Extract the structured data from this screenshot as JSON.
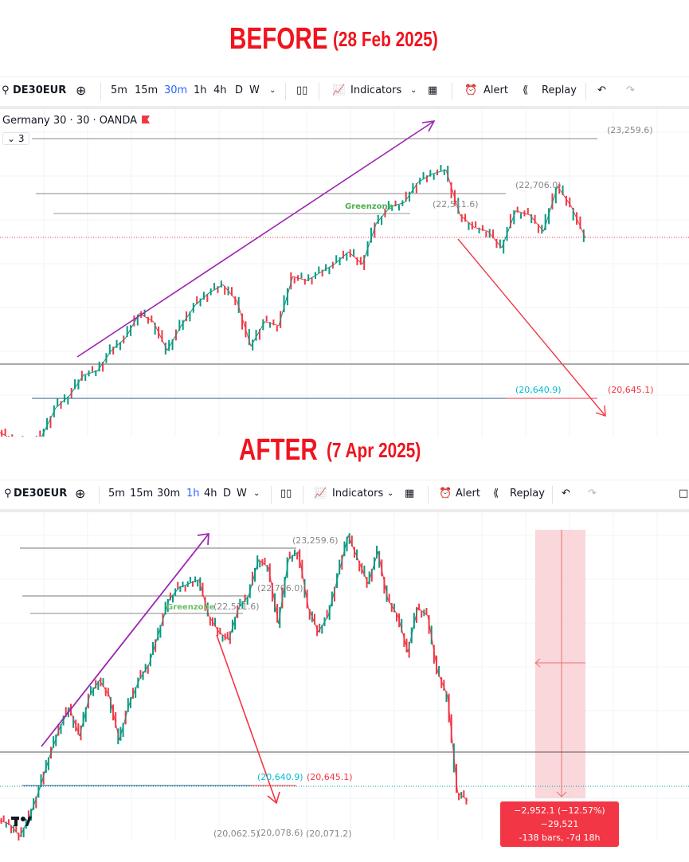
{
  "before": {
    "heading": "BEFORE",
    "date": "(28 Feb 2025)",
    "toolbar": {
      "symbol": "DE30EUR",
      "intervals": [
        "5m",
        "15m",
        "30m",
        "1h",
        "4h",
        "D",
        "W"
      ],
      "active_interval": "30m",
      "indicators": "Indicators",
      "alert": "Alert",
      "replay": "Replay"
    },
    "legend": "Germany 30 · 30 · OANDA",
    "collapse_count": "⌄ 3",
    "labels": {
      "level_top": "(23,259.6)",
      "level_22706": "(22,706.0)",
      "level_22511": "(22,511.6)",
      "greenzone": "Greenzone",
      "level_20640": "(20,640.9)",
      "level_20645": "(20,645.1)"
    }
  },
  "after": {
    "heading": "AFTER",
    "date": "(7 Apr 2025)",
    "toolbar": {
      "symbol": "DE30EUR",
      "intervals": [
        "5m",
        "15m",
        "30m",
        "1h",
        "4h",
        "D",
        "W"
      ],
      "active_interval": "1h",
      "indicators": "Indicators",
      "alert": "Alert",
      "replay": "Replay"
    },
    "labels": {
      "level_top": "(23,259.6)",
      "level_22706": "(22,706.0)",
      "level_22511": "(22,511.6)",
      "greenzone": "Greenzone",
      "level_20640": "(20,640.9)",
      "level_20645": "(20,645.1)",
      "low_1": "(20,062.5)",
      "low_2": "(20,078.6)",
      "low_3": "(20,071.2)"
    },
    "measure": {
      "line1": "−2,952.1 (−12.57%) −29,521",
      "line2": "-138 bars, -7d 18h"
    }
  },
  "colors": {
    "up": "#089981",
    "down": "#f23645",
    "accent": "#2962ff",
    "purple": "#9c27b0",
    "heading": "#f0141e",
    "greenzone": "#4caf50",
    "cyan": "#00bcd4"
  },
  "chart_data": [
    {
      "type": "line",
      "title": "Germany 30 · 30 · OANDA",
      "ylim": [
        20320,
        23532
      ],
      "grid": true,
      "levels": [
        23259.6,
        22706.0,
        22511.6,
        20640.9,
        20645.1
      ],
      "annotations": [
        "Greenzone"
      ],
      "values": [
        20361,
        20281,
        20257,
        20321,
        20602,
        20722,
        20923,
        20963,
        21164,
        21284,
        21525,
        21445,
        21164,
        21405,
        21605,
        21726,
        21806,
        21646,
        21204,
        21445,
        21405,
        21887,
        21847,
        21927,
        22007,
        22128,
        22007,
        22408,
        22569,
        22609,
        22810,
        22890,
        22930,
        22489,
        22369,
        22329,
        22168,
        22529,
        22489,
        22329,
        22770,
        22569,
        22264
      ]
    },
    {
      "type": "line",
      "ylim": [
        20089,
        23680
      ],
      "grid": true,
      "levels": [
        23259.6,
        22706.0,
        22511.6,
        20640.9,
        20645.1
      ],
      "annotations": [
        "Greenzone",
        "(20,062.5)",
        "(20,078.6)",
        "(20,071.2)"
      ],
      "measure": {
        "change": -2952.1,
        "change_pct": -12.57,
        "bars": -138,
        "duration": "-7d 18h"
      },
      "values": [
        20309,
        20265,
        20134,
        20352,
        20659,
        21009,
        21316,
        21535,
        21228,
        21666,
        21841,
        21666,
        21185,
        21579,
        21841,
        22016,
        22366,
        22717,
        22848,
        22892,
        22936,
        22542,
        22366,
        22279,
        22629,
        22760,
        23155,
        23067,
        22454,
        23155,
        23242,
        22629,
        22366,
        22542,
        22980,
        23417,
        23155,
        22892,
        23242,
        22717,
        22542,
        22148,
        22629,
        22542,
        21929,
        21666,
        20615,
        20528
      ]
    }
  ]
}
